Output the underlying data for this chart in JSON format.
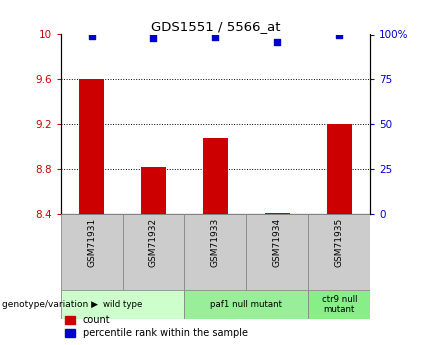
{
  "title": "GDS1551 / 5566_at",
  "samples": [
    "GSM71931",
    "GSM71932",
    "GSM71933",
    "GSM71934",
    "GSM71935"
  ],
  "bar_values": [
    9.6,
    8.82,
    9.08,
    8.41,
    9.2
  ],
  "percentile_values": [
    99,
    98,
    98.5,
    96,
    99.5
  ],
  "ylim_left": [
    8.4,
    10.0
  ],
  "ylim_right": [
    0,
    100
  ],
  "yticks_left": [
    8.4,
    8.8,
    9.2,
    9.6,
    10.0
  ],
  "yticks_right": [
    0,
    25,
    50,
    75,
    100
  ],
  "bar_color": "#cc0000",
  "percentile_color": "#0000cc",
  "background_color": "#ffffff",
  "groups": [
    {
      "label": "wild type",
      "samples": [
        0,
        1
      ],
      "color": "#ccffcc"
    },
    {
      "label": "paf1 null mutant",
      "samples": [
        2,
        3
      ],
      "color": "#99ee99"
    },
    {
      "label": "ctr9 null\nmutant",
      "samples": [
        4
      ],
      "color": "#88ee88"
    }
  ],
  "xlabel_genotype": "genotype/variation",
  "legend_count": "count",
  "legend_percentile": "percentile rank within the sample",
  "bar_width": 0.4,
  "baseline": 8.4,
  "sample_box_color": "#cccccc",
  "sample_box_edge": "#888888"
}
